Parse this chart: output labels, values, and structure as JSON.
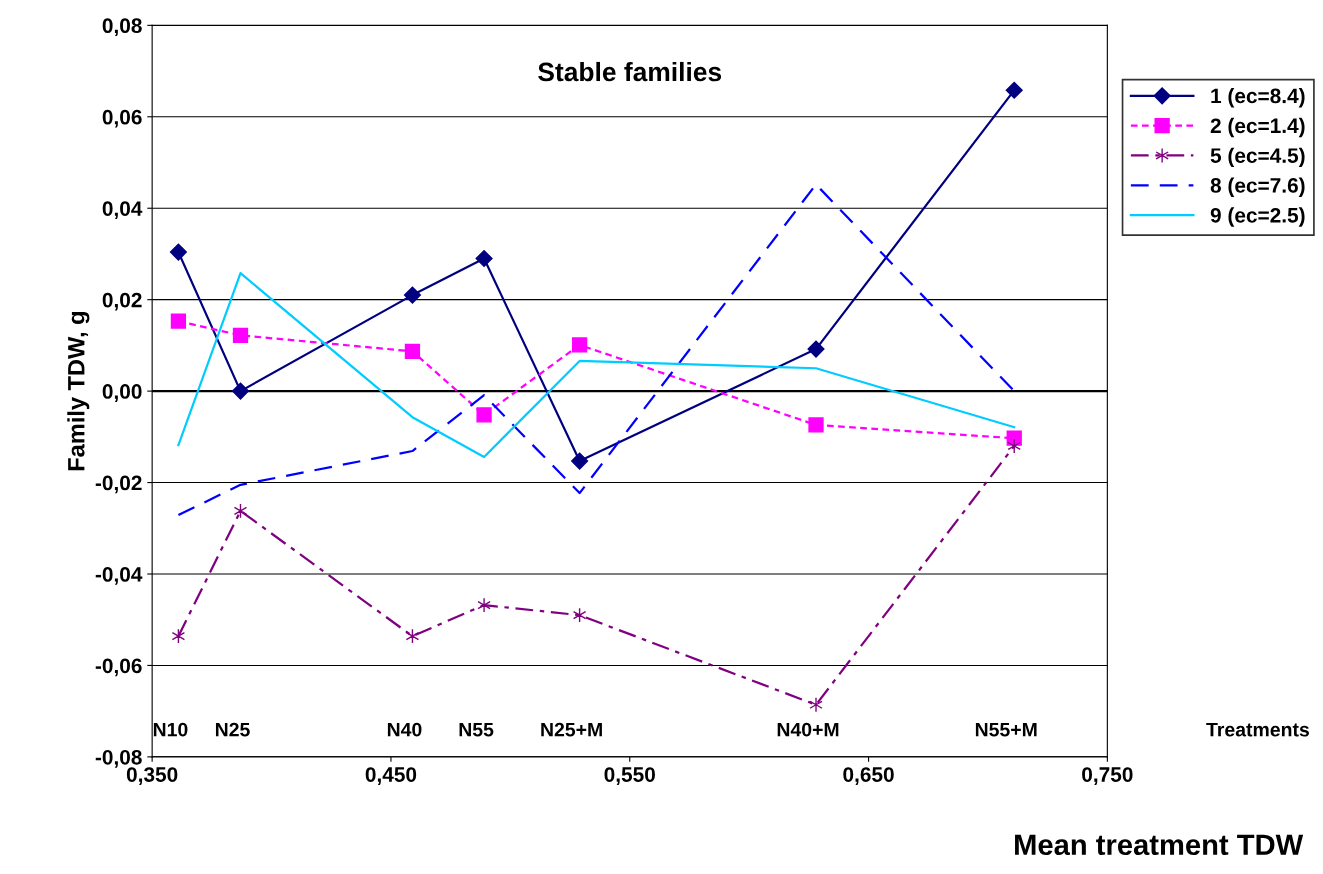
{
  "chart_data": {
    "type": "line",
    "title": "Stable families",
    "xlabel": "Mean treatment TDW",
    "ylabel": "Family TDW, g",
    "x": [
      0.361,
      0.387,
      0.459,
      0.489,
      0.529,
      0.628,
      0.711
    ],
    "series": [
      {
        "name": "1 (ec=8.4)",
        "color": "#000080",
        "marker": "diamond",
        "line_style": "solid",
        "values": [
          0.0304,
          0.0,
          0.021,
          0.029,
          -0.0153,
          0.0092,
          0.0658
        ]
      },
      {
        "name": "2 (ec=1.4)",
        "color": "#ff00ff",
        "marker": "square",
        "line_style": "dotted",
        "values": [
          0.0153,
          0.0122,
          0.0087,
          -0.0052,
          0.0101,
          -0.0074,
          -0.0103
        ]
      },
      {
        "name": "5 (ec=4.5)",
        "color": "#800080",
        "marker": "cross",
        "line_style": "dashdot",
        "values": [
          -0.0536,
          -0.0262,
          -0.0536,
          -0.0468,
          -0.049,
          -0.0686,
          -0.012
        ]
      },
      {
        "name": "8 (ec=7.6)",
        "color": "#0000ff",
        "marker": "none",
        "line_style": "dashed",
        "values": [
          -0.0271,
          -0.0205,
          -0.0131,
          -0.0009,
          -0.0223,
          0.0452,
          0.0
        ]
      },
      {
        "name": "9 (ec=2.5)",
        "color": "#00ccff",
        "marker": "none",
        "line_style": "solid",
        "values": [
          -0.0118,
          0.0258,
          -0.0057,
          -0.0144,
          0.0066,
          0.005,
          -0.0079
        ]
      }
    ],
    "xlim": [
      0.35,
      0.75
    ],
    "xticks": [
      {
        "value": 0.35,
        "label": "0,350"
      },
      {
        "value": 0.45,
        "label": "0,450"
      },
      {
        "value": 0.55,
        "label": "0,550"
      },
      {
        "value": 0.65,
        "label": "0,650"
      },
      {
        "value": 0.75,
        "label": "0,750"
      }
    ],
    "ylim": [
      -0.08,
      0.08
    ],
    "yticks": [
      {
        "value": -0.08,
        "label": "-0,08"
      },
      {
        "value": -0.06,
        "label": "-0,06"
      },
      {
        "value": -0.04,
        "label": "-0,04"
      },
      {
        "value": -0.02,
        "label": "-0,02"
      },
      {
        "value": 0.0,
        "label": "0,00"
      },
      {
        "value": 0.02,
        "label": "0,02"
      },
      {
        "value": 0.04,
        "label": "0,04"
      },
      {
        "value": 0.06,
        "label": "0,06"
      },
      {
        "value": 0.08,
        "label": "0,08"
      }
    ],
    "ref_lines": [
      {
        "axis": "y",
        "value": 0.0,
        "color": "#000000"
      }
    ],
    "annotations": [
      "N10",
      "N25",
      "N40",
      "N55",
      "N25+M",
      "N40+M",
      "N55+M",
      "Treatments"
    ],
    "grid": "y",
    "legend": "top right"
  }
}
